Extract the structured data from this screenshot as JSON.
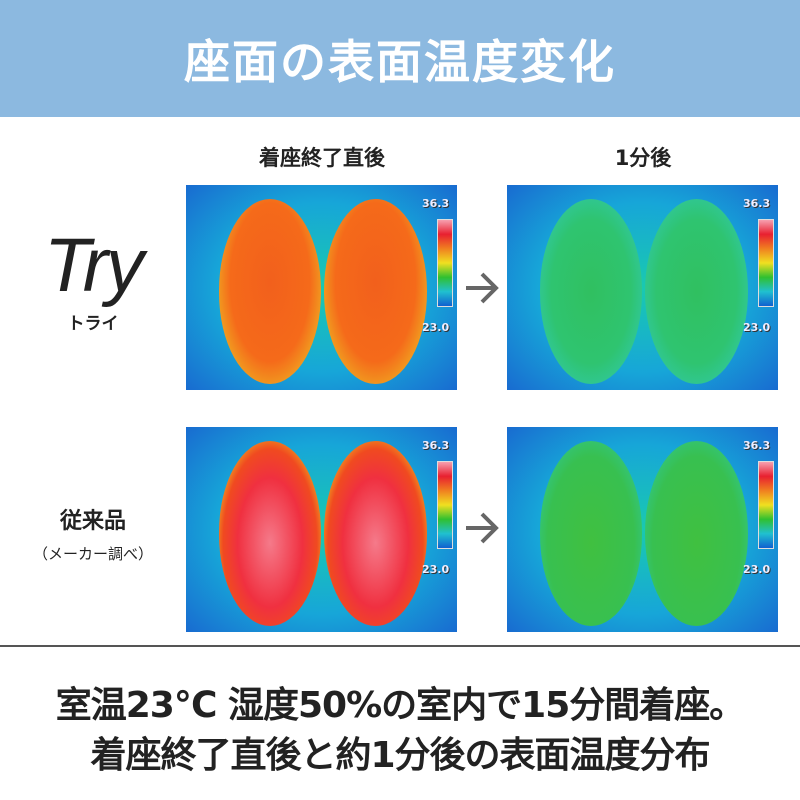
{
  "header": {
    "title": "座面の表面温度変化"
  },
  "columns": [
    "着座終了直後",
    "1分後"
  ],
  "rows": [
    {
      "label": "Try",
      "sublabel": "トライ"
    },
    {
      "label": "従来品",
      "sublabel": "（メーカー調べ）"
    }
  ],
  "thermal_scale": {
    "max": "36.3",
    "min": "23.0"
  },
  "icons": {
    "arrow": "arrow-right-icon"
  },
  "caption": {
    "line1": "室温23℃ 湿度50%の室内で15分間着座。",
    "line2": "着座終了直後と約1分後の表面温度分布"
  },
  "colors": {
    "header": "#8cb9e0",
    "text": "#222222"
  }
}
